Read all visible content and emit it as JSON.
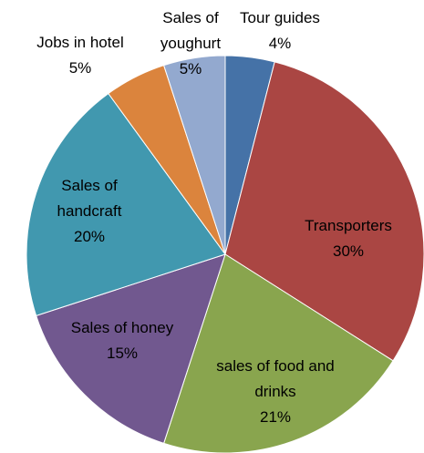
{
  "chart_data": {
    "type": "pie",
    "categories": [
      "Tour guides",
      "Transporters",
      "sales of food and drinks",
      "Sales of honey",
      "Sales of handcraft",
      "Jobs in hotel",
      "Sales of youghurt"
    ],
    "values": [
      4,
      30,
      21,
      15,
      20,
      5,
      5
    ],
    "value_labels": [
      "4%",
      "30%",
      "21%",
      "15%",
      "20%",
      "5%",
      "5%"
    ],
    "colors": [
      "#4572a7",
      "#aa4643",
      "#89a54e",
      "#71588f",
      "#4198af",
      "#db843d",
      "#93a9cf"
    ]
  }
}
